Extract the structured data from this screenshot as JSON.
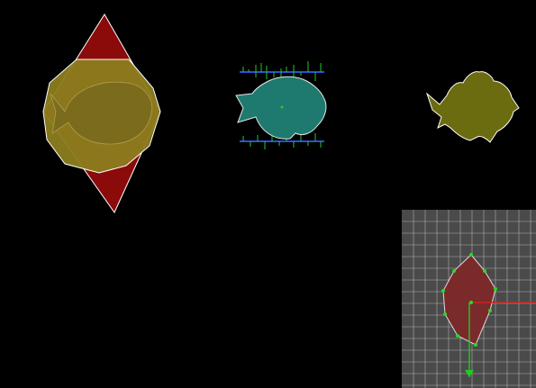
{
  "viewport": {
    "background": "#000000"
  },
  "objects": {
    "convex_hull_fish": {
      "name": "convex-hull-fish",
      "hull_color": "#8b0a0a",
      "polygon_color": "#8c7d1e",
      "fish_color": "#7a6c1c",
      "outline_color": "#ffffff"
    },
    "sampled_fish": {
      "name": "sampled-fish",
      "fill_color": "#1e7a6e",
      "sample_line_color": "#2a4fd8",
      "sample_tick_color": "#22cc22"
    },
    "plain_fish": {
      "name": "plain-fish",
      "fill_color": "#6b6b10",
      "outline_color": "#ffffff"
    }
  },
  "inset_panel": {
    "background": "#4a4a4a",
    "grid_color": "#cfcfcf",
    "shape_fill": "#7a2a2a",
    "vertex_color": "#22dd22",
    "axis_x_color": "#cc2222",
    "axis_y_color": "#22cc22"
  }
}
